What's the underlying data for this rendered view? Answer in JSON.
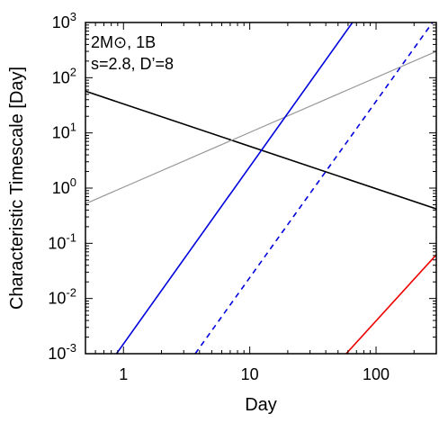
{
  "chart_data": {
    "type": "line",
    "title": "",
    "xlabel": "Day",
    "ylabel": "Characteristic Timescale [Day]",
    "xscale": "log",
    "yscale": "log",
    "xlim": [
      0.5,
      300
    ],
    "ylim": [
      0.001,
      1000
    ],
    "grid": false,
    "legend": "none",
    "x_ticks": [
      {
        "value": 1,
        "label": "1"
      },
      {
        "value": 10,
        "label": "10"
      },
      {
        "value": 100,
        "label": "100"
      }
    ],
    "y_ticks": [
      {
        "value": 0.001,
        "base": "10",
        "exp": "-3"
      },
      {
        "value": 0.01,
        "base": "10",
        "exp": "-2"
      },
      {
        "value": 0.1,
        "base": "10",
        "exp": "-1"
      },
      {
        "value": 1,
        "base": "10",
        "exp": "0"
      },
      {
        "value": 10,
        "base": "10",
        "exp": "1"
      },
      {
        "value": 100,
        "base": "10",
        "exp": "2"
      },
      {
        "value": 1000,
        "base": "10",
        "exp": "3"
      }
    ],
    "annotations": [
      "2M⊙, 1B",
      "s=2.8, D’=8"
    ],
    "series": [
      {
        "color": "#000000",
        "dash": "solid",
        "width": 1.6,
        "x": [
          0.5,
          300
        ],
        "y": [
          57,
          0.42
        ]
      },
      {
        "color": "#999999",
        "dash": "solid",
        "width": 1.2,
        "x": [
          0.5,
          300
        ],
        "y": [
          0.52,
          300
        ]
      },
      {
        "color": "#0000dd",
        "dash": "solid",
        "width": 1.6,
        "x": [
          0.88,
          65
        ],
        "y": [
          0.001,
          1000
        ]
      },
      {
        "color": "#0000dd",
        "dash": "dashed",
        "width": 1.6,
        "x": [
          3.7,
          280
        ],
        "y": [
          0.001,
          1000
        ]
      },
      {
        "color": "#ee0000",
        "dash": "solid",
        "width": 1.6,
        "x": [
          58,
          300
        ],
        "y": [
          0.001,
          0.062
        ]
      }
    ]
  }
}
